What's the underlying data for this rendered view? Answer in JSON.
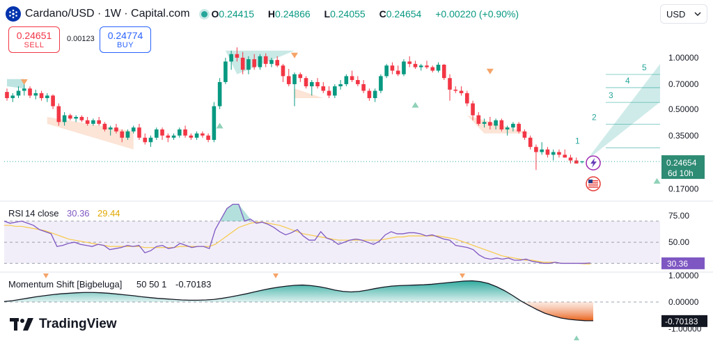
{
  "header": {
    "title": "Cardano/USD · 1W · Capital.com",
    "open": {
      "key": "O",
      "val": "0.24415"
    },
    "high": {
      "key": "H",
      "val": "0.24866"
    },
    "low": {
      "key": "L",
      "val": "0.24055"
    },
    "close": {
      "key": "C",
      "val": "0.24654"
    },
    "change": "+0.00220 (+0.90%)"
  },
  "trade": {
    "sell_price": "0.24651",
    "sell_label": "SELL",
    "spread": "0.00123",
    "buy_price": "0.24774",
    "buy_label": "BUY"
  },
  "currency": {
    "label": "USD"
  },
  "brand": {
    "name": "TradingView"
  },
  "colors": {
    "up": "#089981",
    "down": "#f23645",
    "rsi_line": "#7e57c2",
    "rsi_ma": "#f7c948",
    "badge": "#2e8b74",
    "accent": "#2962ff"
  },
  "chart_data": [
    {
      "type": "candlestick",
      "title": "Cardano/USD · 1W · Capital.com",
      "y_scale": "log",
      "ylim": [
        0.15,
        1.3
      ],
      "y_ticks": [
        "1.00000",
        "0.70000",
        "0.50000",
        "0.35000",
        "0.17000"
      ],
      "y_tick_values": [
        1.0,
        0.7,
        0.5,
        0.35,
        0.17
      ],
      "candles": [
        [
          0.63,
          0.66,
          0.56,
          0.58
        ],
        [
          0.58,
          0.62,
          0.55,
          0.6
        ],
        [
          0.6,
          0.68,
          0.58,
          0.64
        ],
        [
          0.64,
          0.7,
          0.6,
          0.66
        ],
        [
          0.66,
          0.68,
          0.58,
          0.6
        ],
        [
          0.6,
          0.65,
          0.57,
          0.62
        ],
        [
          0.62,
          0.64,
          0.56,
          0.58
        ],
        [
          0.58,
          0.62,
          0.55,
          0.6
        ],
        [
          0.6,
          0.61,
          0.5,
          0.52
        ],
        [
          0.52,
          0.54,
          0.4,
          0.42
        ],
        [
          0.42,
          0.48,
          0.4,
          0.46
        ],
        [
          0.46,
          0.47,
          0.43,
          0.44
        ],
        [
          0.44,
          0.46,
          0.42,
          0.45
        ],
        [
          0.45,
          0.46,
          0.42,
          0.43
        ],
        [
          0.43,
          0.45,
          0.4,
          0.41
        ],
        [
          0.41,
          0.44,
          0.4,
          0.43
        ],
        [
          0.43,
          0.45,
          0.4,
          0.41
        ],
        [
          0.41,
          0.42,
          0.37,
          0.38
        ],
        [
          0.38,
          0.4,
          0.35,
          0.39
        ],
        [
          0.39,
          0.41,
          0.36,
          0.37
        ],
        [
          0.37,
          0.38,
          0.32,
          0.34
        ],
        [
          0.34,
          0.38,
          0.33,
          0.37
        ],
        [
          0.37,
          0.4,
          0.36,
          0.39
        ],
        [
          0.39,
          0.41,
          0.33,
          0.34
        ],
        [
          0.34,
          0.36,
          0.31,
          0.32
        ],
        [
          0.32,
          0.35,
          0.3,
          0.34
        ],
        [
          0.34,
          0.39,
          0.33,
          0.38
        ],
        [
          0.38,
          0.39,
          0.33,
          0.35
        ],
        [
          0.35,
          0.36,
          0.32,
          0.34
        ],
        [
          0.34,
          0.36,
          0.33,
          0.35
        ],
        [
          0.35,
          0.39,
          0.34,
          0.38
        ],
        [
          0.38,
          0.4,
          0.34,
          0.35
        ],
        [
          0.35,
          0.36,
          0.33,
          0.34
        ],
        [
          0.34,
          0.37,
          0.33,
          0.36
        ],
        [
          0.36,
          0.37,
          0.34,
          0.35
        ],
        [
          0.35,
          0.36,
          0.32,
          0.33
        ],
        [
          0.33,
          0.55,
          0.32,
          0.52
        ],
        [
          0.52,
          0.76,
          0.5,
          0.72
        ],
        [
          0.72,
          1.0,
          0.7,
          0.95
        ],
        [
          0.95,
          1.1,
          0.85,
          1.05
        ],
        [
          1.05,
          1.15,
          0.95,
          1.0
        ],
        [
          1.0,
          1.08,
          0.8,
          0.85
        ],
        [
          0.85,
          1.02,
          0.8,
          0.98
        ],
        [
          0.98,
          1.05,
          0.85,
          0.88
        ],
        [
          0.88,
          1.05,
          0.85,
          1.02
        ],
        [
          1.02,
          1.06,
          0.88,
          0.92
        ],
        [
          0.92,
          1.0,
          0.88,
          0.97
        ],
        [
          0.97,
          1.02,
          0.88,
          0.9
        ],
        [
          0.9,
          0.92,
          0.72,
          0.78
        ],
        [
          0.78,
          0.86,
          0.68,
          0.7
        ],
        [
          0.7,
          0.82,
          0.52,
          0.8
        ],
        [
          0.8,
          0.82,
          0.72,
          0.76
        ],
        [
          0.76,
          0.78,
          0.66,
          0.68
        ],
        [
          0.68,
          0.74,
          0.6,
          0.72
        ],
        [
          0.72,
          0.76,
          0.66,
          0.68
        ],
        [
          0.68,
          0.72,
          0.62,
          0.64
        ],
        [
          0.64,
          0.68,
          0.58,
          0.6
        ],
        [
          0.6,
          0.7,
          0.58,
          0.68
        ],
        [
          0.68,
          0.74,
          0.65,
          0.7
        ],
        [
          0.7,
          0.8,
          0.68,
          0.78
        ],
        [
          0.78,
          0.84,
          0.72,
          0.74
        ],
        [
          0.74,
          0.78,
          0.68,
          0.7
        ],
        [
          0.7,
          0.74,
          0.62,
          0.64
        ],
        [
          0.64,
          0.66,
          0.56,
          0.58
        ],
        [
          0.58,
          0.66,
          0.55,
          0.64
        ],
        [
          0.64,
          0.8,
          0.62,
          0.78
        ],
        [
          0.78,
          0.92,
          0.76,
          0.9
        ],
        [
          0.9,
          0.94,
          0.8,
          0.84
        ],
        [
          0.84,
          0.9,
          0.78,
          0.8
        ],
        [
          0.8,
          0.98,
          0.78,
          0.95
        ],
        [
          0.95,
          1.02,
          0.88,
          0.92
        ],
        [
          0.92,
          0.96,
          0.86,
          0.88
        ],
        [
          0.88,
          0.92,
          0.84,
          0.9
        ],
        [
          0.9,
          0.96,
          0.86,
          0.88
        ],
        [
          0.88,
          0.9,
          0.82,
          0.84
        ],
        [
          0.84,
          0.94,
          0.82,
          0.91
        ],
        [
          0.91,
          0.92,
          0.74,
          0.76
        ],
        [
          0.76,
          0.8,
          0.56,
          0.65
        ],
        [
          0.65,
          0.68,
          0.62,
          0.64
        ],
        [
          0.64,
          0.68,
          0.6,
          0.62
        ],
        [
          0.62,
          0.64,
          0.52,
          0.54
        ],
        [
          0.54,
          0.56,
          0.43,
          0.46
        ],
        [
          0.46,
          0.48,
          0.4,
          0.41
        ],
        [
          0.41,
          0.44,
          0.39,
          0.42
        ],
        [
          0.42,
          0.45,
          0.38,
          0.4
        ],
        [
          0.4,
          0.44,
          0.38,
          0.43
        ],
        [
          0.43,
          0.44,
          0.37,
          0.38
        ],
        [
          0.38,
          0.4,
          0.35,
          0.39
        ],
        [
          0.39,
          0.42,
          0.37,
          0.41
        ],
        [
          0.41,
          0.42,
          0.36,
          0.37
        ],
        [
          0.37,
          0.38,
          0.33,
          0.34
        ],
        [
          0.34,
          0.35,
          0.29,
          0.3
        ],
        [
          0.3,
          0.31,
          0.22,
          0.28
        ],
        [
          0.28,
          0.32,
          0.27,
          0.29
        ],
        [
          0.29,
          0.3,
          0.26,
          0.27
        ],
        [
          0.27,
          0.29,
          0.25,
          0.28
        ],
        [
          0.28,
          0.29,
          0.26,
          0.27
        ],
        [
          0.27,
          0.29,
          0.26,
          0.26
        ],
        [
          0.26,
          0.27,
          0.24,
          0.25
        ],
        [
          0.25,
          0.26,
          0.24,
          0.24
        ],
        [
          0.24415,
          0.24866,
          0.24055,
          0.24654
        ]
      ],
      "current_price": {
        "value": 0.24654,
        "label": "0.24654",
        "countdown": "6d 10h"
      },
      "projection_levels": [
        "1",
        "2",
        "3",
        "4",
        "5"
      ],
      "projection_values": [
        0.32,
        0.44,
        0.59,
        0.72,
        0.86
      ]
    },
    {
      "type": "line",
      "title": "RSI",
      "params": "14 close",
      "value_label": "30.36",
      "ma_label": "29.44",
      "ylim": [
        25,
        85
      ],
      "y_ticks": [
        "75.00",
        "50.00"
      ],
      "y_tick_values": [
        75,
        50
      ],
      "levels": [
        70,
        50,
        30
      ],
      "series": [
        {
          "name": "RSI",
          "values": [
            70,
            68,
            69,
            70,
            68,
            66,
            62,
            60,
            58,
            46,
            47,
            49,
            50,
            48,
            47,
            46,
            48,
            47,
            43,
            44,
            45,
            47,
            46,
            47,
            40,
            42,
            46,
            47,
            44,
            45,
            49,
            47,
            45,
            46,
            46,
            44,
            62,
            72,
            82,
            86,
            86,
            70,
            72,
            68,
            69,
            67,
            64,
            60,
            57,
            59,
            62,
            56,
            52,
            52,
            60,
            54,
            52,
            48,
            50,
            52,
            53,
            52,
            50,
            48,
            51,
            57,
            60,
            58,
            58,
            59,
            59,
            58,
            56,
            57,
            55,
            53,
            52,
            47,
            46,
            45,
            43,
            38,
            35,
            34,
            35,
            34,
            35,
            33,
            33,
            34,
            32,
            31,
            30,
            30,
            31,
            30,
            30,
            30,
            30,
            30,
            30.36
          ]
        },
        {
          "name": "RSI-based MA",
          "values": [
            66,
            66,
            65,
            65,
            64,
            63,
            62,
            61,
            59,
            57,
            55,
            53,
            52,
            51,
            50,
            49,
            48,
            47,
            46,
            46,
            46,
            46,
            46,
            46,
            45,
            45,
            45,
            45,
            45,
            45,
            46,
            46,
            46,
            46,
            46,
            46,
            48,
            52,
            56,
            60,
            64,
            66,
            68,
            69,
            69,
            68,
            67,
            66,
            64,
            62,
            60,
            58,
            57,
            56,
            55,
            54,
            53,
            52,
            52,
            52,
            52,
            52,
            52,
            52,
            52,
            53,
            54,
            55,
            55,
            56,
            56,
            56,
            56,
            56,
            56,
            55,
            54,
            53,
            51,
            49,
            47,
            45,
            43,
            41,
            39,
            37,
            36,
            35,
            34,
            33,
            33,
            32,
            31,
            31,
            31,
            30,
            30,
            30,
            30,
            29.5,
            29.44
          ]
        }
      ],
      "current_value": {
        "value": 30.36,
        "label": "30.36"
      }
    },
    {
      "type": "area",
      "title": "Momentum Shift [Bigbeluga]",
      "params": "50 50 1",
      "value_label": "-0.70183",
      "ylim": [
        -1.15,
        1.1
      ],
      "y_ticks": [
        "1.00000",
        "0.00000",
        "-1.00000"
      ],
      "y_tick_values": [
        1.0,
        0.0,
        -1.0
      ],
      "values": [
        0.02,
        0.05,
        0.1,
        0.15,
        0.2,
        0.24,
        0.28,
        0.31,
        0.33,
        0.35,
        0.36,
        0.36,
        0.35,
        0.33,
        0.3,
        0.27,
        0.24,
        0.2,
        0.17,
        0.14,
        0.12,
        0.1,
        0.08,
        0.07,
        0.07,
        0.08,
        0.1,
        0.14,
        0.19,
        0.25,
        0.31,
        0.38,
        0.45,
        0.51,
        0.56,
        0.6,
        0.63,
        0.64,
        0.62,
        0.58,
        0.52,
        0.45,
        0.4,
        0.38,
        0.4,
        0.45,
        0.51,
        0.56,
        0.6,
        0.62,
        0.63,
        0.64,
        0.65,
        0.67,
        0.7,
        0.73,
        0.76,
        0.79,
        0.8,
        0.77,
        0.7,
        0.58,
        0.43,
        0.25,
        0.05,
        -0.12,
        -0.28,
        -0.42,
        -0.52,
        -0.6,
        -0.65,
        -0.68,
        -0.7,
        -0.70183
      ],
      "current_value": {
        "value": -0.70183,
        "label": "-0.70183"
      }
    }
  ]
}
